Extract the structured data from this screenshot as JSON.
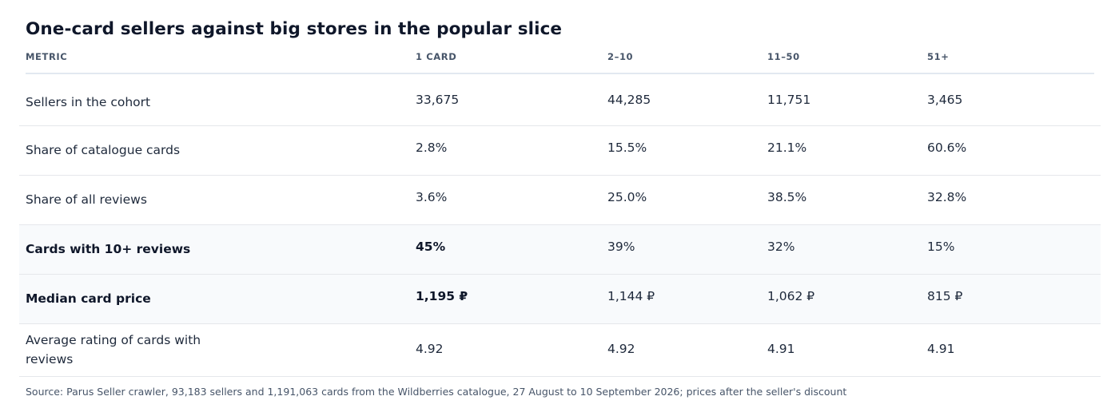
{
  "chart_data": {
    "type": "table",
    "title": "One-card sellers against big stores in the popular slice",
    "columns": [
      "METRIC",
      "1 CARD",
      "2–10",
      "11–50",
      "51+"
    ],
    "rows": [
      {
        "metric": "Sellers in the cohort",
        "values": [
          "33,675",
          "44,285",
          "11,751",
          "3,465"
        ],
        "highlight": false
      },
      {
        "metric": "Share of catalogue cards",
        "values": [
          "2.8%",
          "15.5%",
          "21.1%",
          "60.6%"
        ],
        "highlight": false
      },
      {
        "metric": "Share of all reviews",
        "values": [
          "3.6%",
          "25.0%",
          "38.5%",
          "32.8%"
        ],
        "highlight": false
      },
      {
        "metric": "Cards with 10+ reviews",
        "values": [
          "45%",
          "39%",
          "32%",
          "15%"
        ],
        "highlight": true
      },
      {
        "metric": "Median card price",
        "values": [
          "1,195 ₽",
          "1,144 ₽",
          "1,062 ₽",
          "815 ₽"
        ],
        "highlight": true
      },
      {
        "metric": "Average rating of cards with reviews",
        "values": [
          "4.92",
          "4.92",
          "4.91",
          "4.91"
        ],
        "highlight": false
      }
    ],
    "source": "Source: Parus Seller crawler, 93,183 sellers and 1,191,063 cards from the Wildberries catalogue, 27 August to 10 September 2026; prices after the seller's discount"
  }
}
